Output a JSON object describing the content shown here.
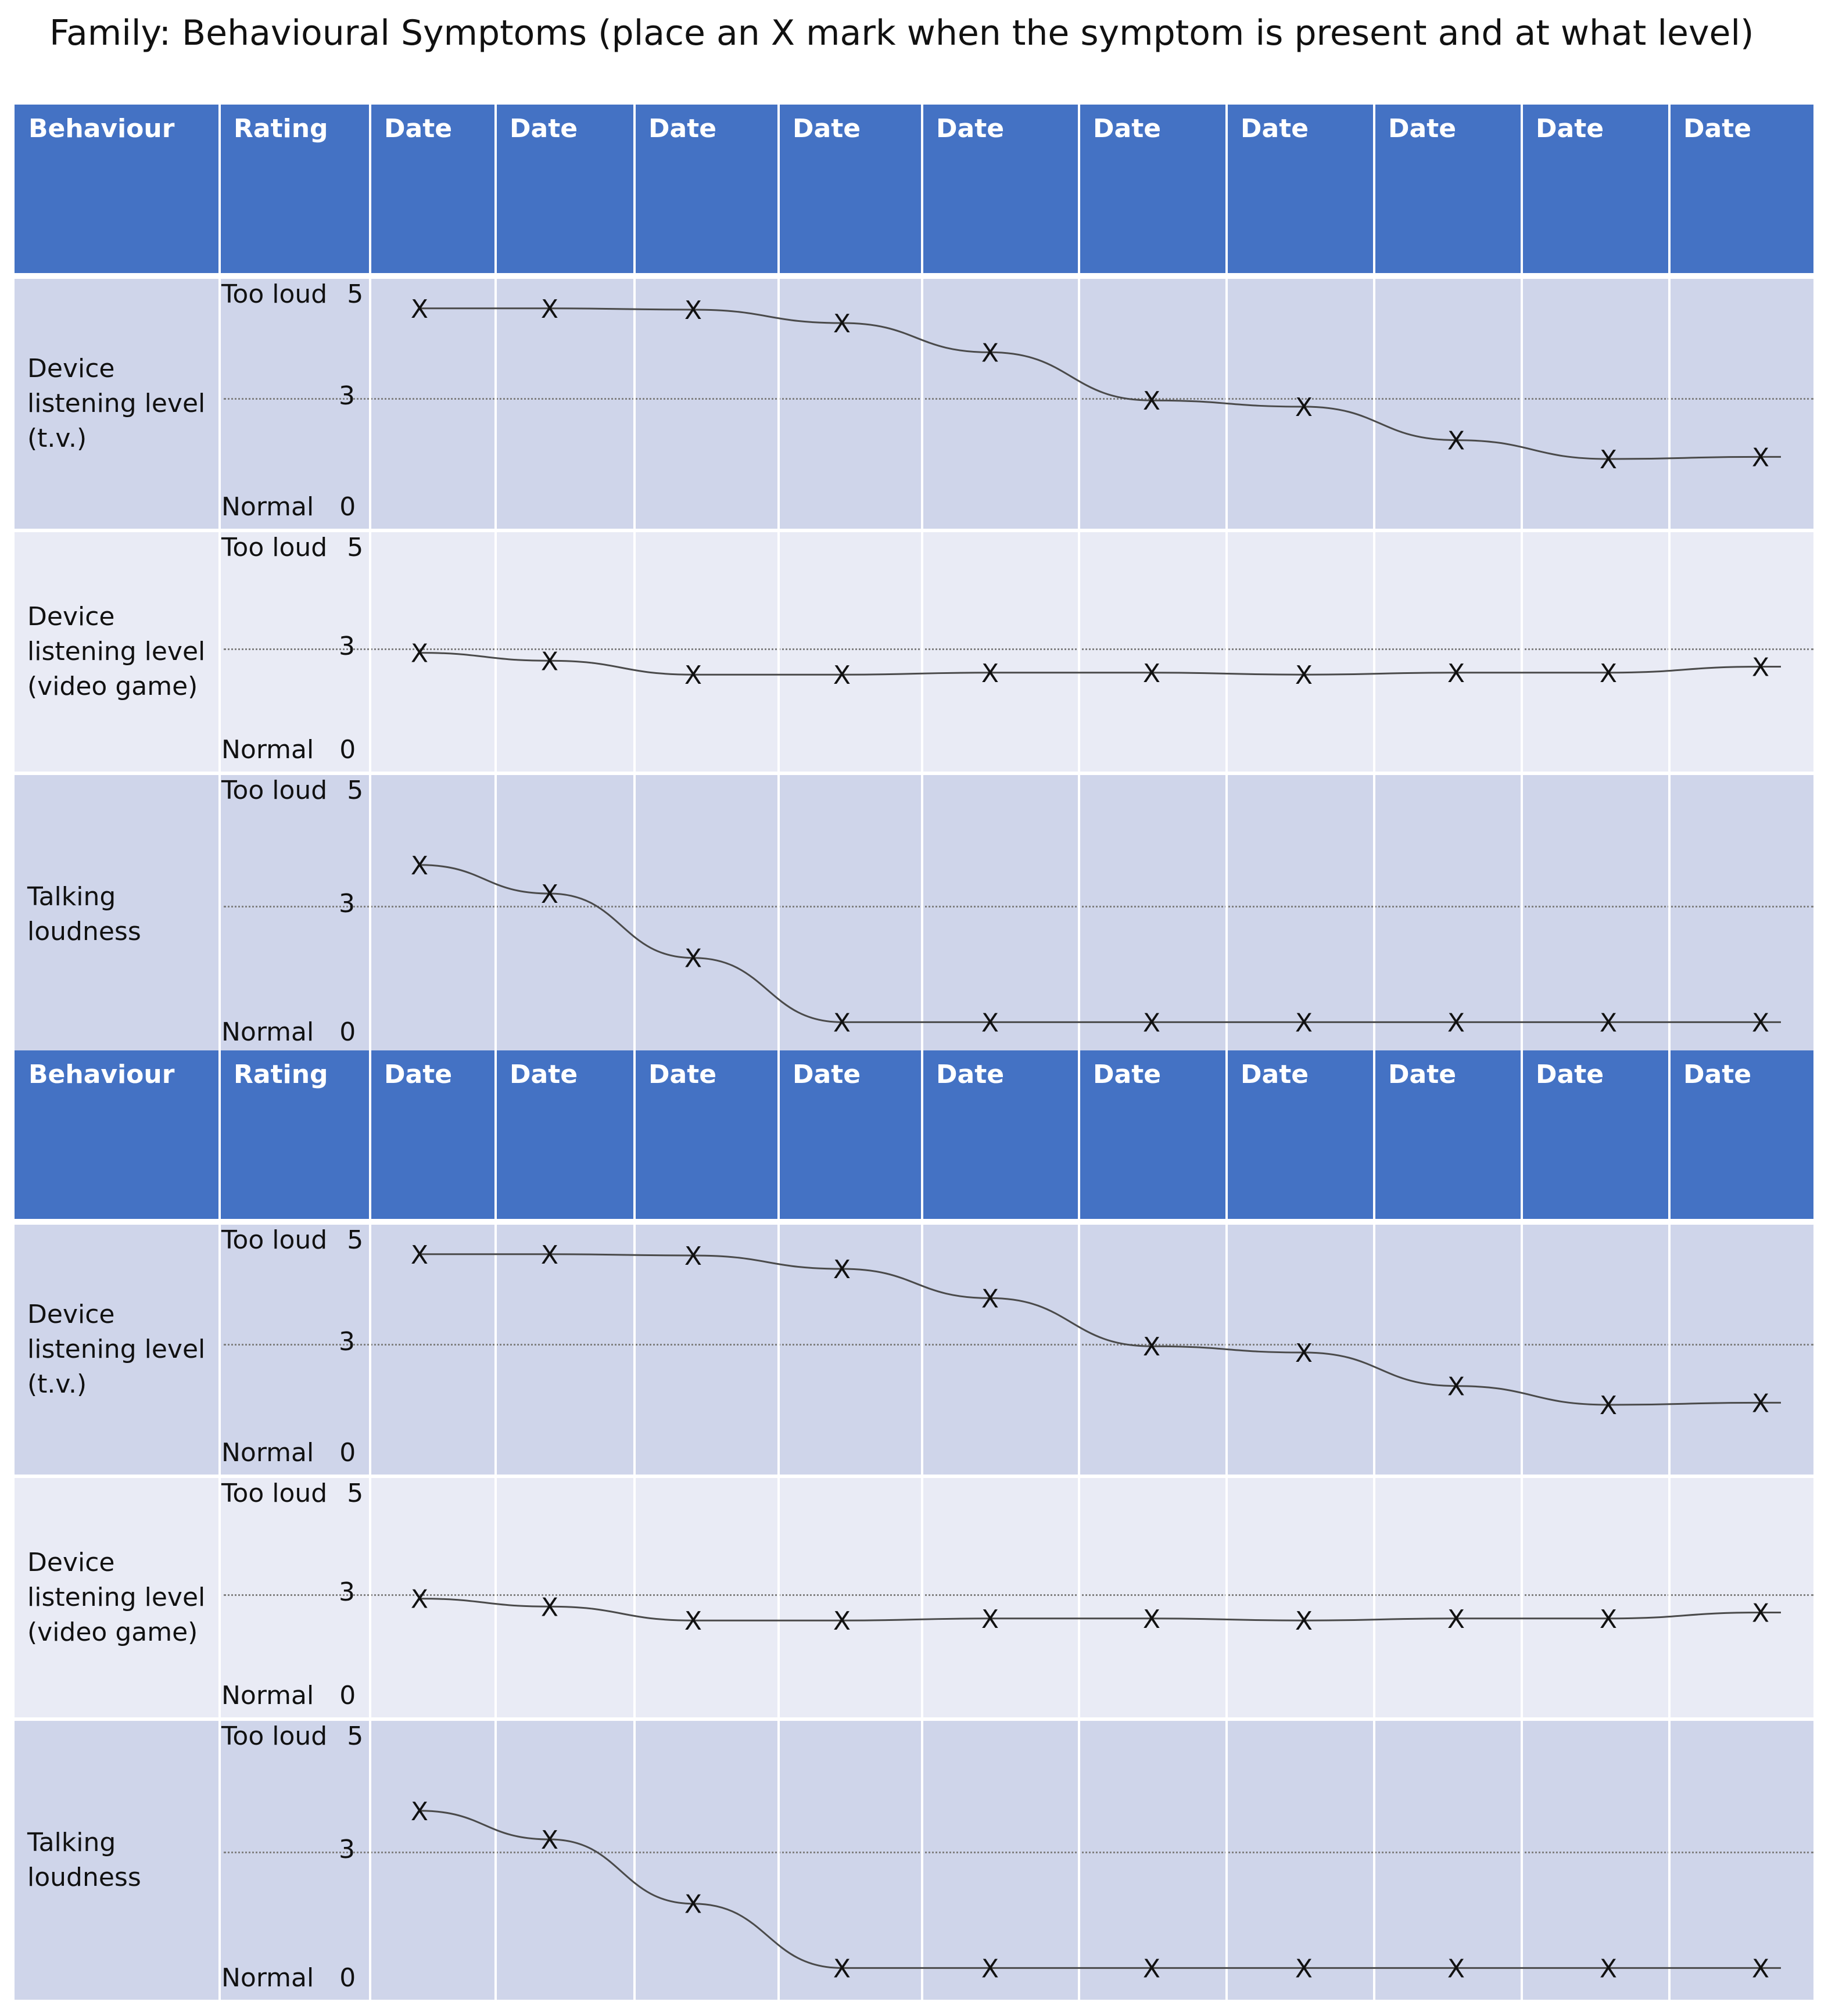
{
  "title": "Family: Behavioural Symptoms (place an X  mark when the symptom is present and at what level)",
  "header": {
    "behaviour": "Behaviour",
    "rating": "Rating",
    "dates": [
      "Date",
      "Date",
      "Date",
      "Date",
      "Date",
      "Date",
      "Date",
      "Date",
      "Date",
      "Date"
    ]
  },
  "rating_scale": {
    "high_label": "Too loud",
    "high_value": "5",
    "mid_value": "3",
    "low_label": "Normal",
    "low_value": "0"
  },
  "mark_symbol": "X",
  "tables": [
    {
      "rows": [
        {
          "behaviour": [
            "Device",
            "listening level",
            "(t.v.)"
          ],
          "levels": [
            4.85,
            4.85,
            4.82,
            4.5,
            3.8,
            2.65,
            2.5,
            1.7,
            1.25,
            1.3
          ]
        },
        {
          "behaviour": [
            "Device",
            "listening level",
            "(video game)"
          ],
          "levels": [
            2.55,
            2.35,
            2.0,
            2.0,
            2.05,
            2.05,
            2.0,
            2.05,
            2.05,
            2.2
          ]
        },
        {
          "behaviour": [
            "Talking",
            "loudness"
          ],
          "levels": [
            3.6,
            3.0,
            1.65,
            0.3,
            0.3,
            0.3,
            0.3,
            0.3,
            0.3,
            0.3
          ]
        }
      ]
    },
    {
      "rows": [
        {
          "behaviour": [
            "Device",
            "listening level",
            "(t.v.)"
          ],
          "levels": [
            4.85,
            4.85,
            4.82,
            4.5,
            3.8,
            2.65,
            2.5,
            1.7,
            1.25,
            1.3
          ]
        },
        {
          "behaviour": [
            "Device",
            "listening level",
            "(video game)"
          ],
          "levels": [
            2.55,
            2.35,
            2.0,
            2.0,
            2.05,
            2.05,
            2.0,
            2.05,
            2.05,
            2.2
          ]
        },
        {
          "behaviour": [
            "Talking",
            "loudness"
          ],
          "levels": [
            3.6,
            3.0,
            1.65,
            0.3,
            0.3,
            0.3,
            0.3,
            0.3,
            0.3,
            0.3
          ]
        }
      ]
    }
  ],
  "colors": {
    "header_bg": "#4472c4",
    "row_dark": "#cfd5ea",
    "row_light": "#e9ebf5",
    "curve": "#4a4a4a"
  }
}
